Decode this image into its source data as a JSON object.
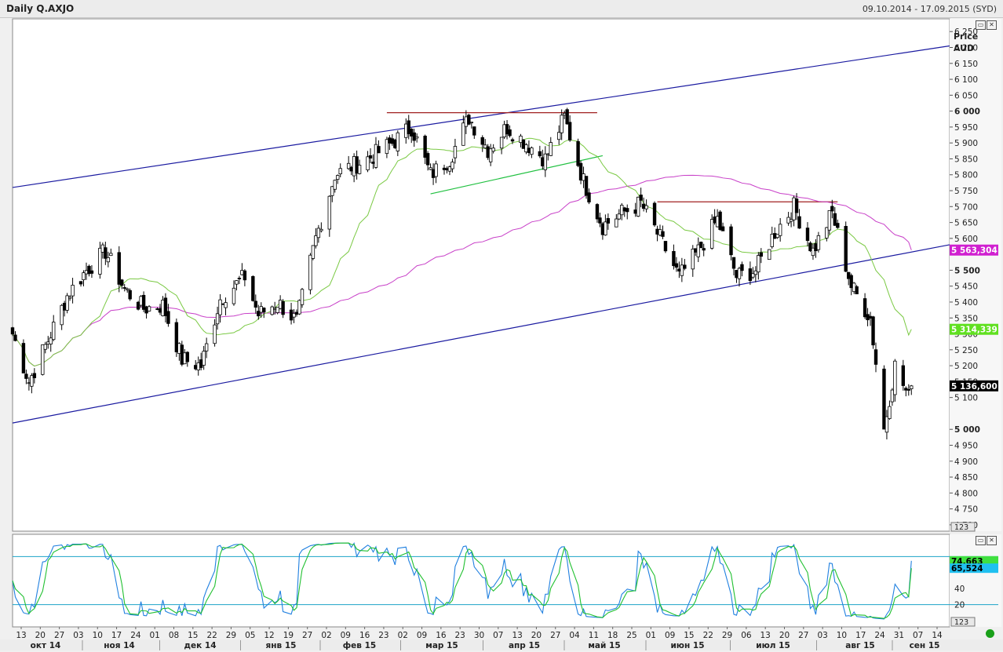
{
  "header": {
    "title": "Daily Q.AXJO",
    "date_range": "09.10.2014 - 17.09.2015 (SYD)"
  },
  "price_axis": {
    "title": "Price",
    "currency": "AUD",
    "ticks": [
      "6 250",
      "6 200",
      "6 150",
      "6 100",
      "6 050",
      "6 000",
      "5 950",
      "5 900",
      "5 850",
      "5 800",
      "5 750",
      "5 700",
      "5 650",
      "5 600",
      "5 500",
      "5 450",
      "5 400",
      "5 350",
      "5 300",
      "5 250",
      "5 200",
      "5 150",
      "5 100",
      "5 000",
      "4 950",
      "4 900",
      "4 850",
      "4 800",
      "4 750",
      "4 700"
    ],
    "scale_button": "123"
  },
  "osc_axis": {
    "ticks": [
      "40",
      "20"
    ],
    "scale_button": "123"
  },
  "labels": {
    "last_price": "5 136,600",
    "sma_long": "5 563,304",
    "sma_short": "5 314,339",
    "stoch_k": "74,663",
    "stoch_d": "65,524"
  },
  "colors": {
    "candle": "#000000",
    "sma_short": "#7ac943",
    "sma_long": "#c840c8",
    "channel": "#1a1aa0",
    "resistance": "#a02020",
    "support": "#20c040",
    "stoch_k": "#2080e0",
    "stoch_d": "#20c030",
    "osc_levels": "#1ba3c8",
    "last_price_bg": "#000000",
    "sma_long_bg": "#d020d0",
    "sma_short_bg": "#60e020",
    "stoch_k_bg": "#20c0f0",
    "stoch_d_bg": "#40e040"
  },
  "time_axis": {
    "days": [
      "13",
      "20",
      "27",
      "03",
      "10",
      "17",
      "24",
      "01",
      "08",
      "15",
      "22",
      "29",
      "05",
      "12",
      "19",
      "27",
      "02",
      "09",
      "16",
      "23",
      "02",
      "09",
      "16",
      "23",
      "30",
      "07",
      "13",
      "20",
      "27",
      "04",
      "11",
      "18",
      "25",
      "01",
      "09",
      "15",
      "22",
      "29",
      "06",
      "13",
      "20",
      "27",
      "03",
      "10",
      "17",
      "24",
      "31",
      "07",
      "14"
    ],
    "months": [
      "окт 14",
      "ноя 14",
      "дек 14",
      "янв 15",
      "фев 15",
      "мар 15",
      "апр 15",
      "май 15",
      "июн 15",
      "июл 15",
      "авг 15",
      "сен 15"
    ]
  },
  "chart_data": {
    "type": "candlestick",
    "symbol": "Q.AXJO",
    "period": "Daily",
    "y_unit": "AUD",
    "ylim": [
      4680,
      6290
    ],
    "series_points": {
      "anchors_date_close": [
        [
          "2014-10-09",
          5300
        ],
        [
          "2014-10-15",
          5150
        ],
        [
          "2014-10-22",
          5280
        ],
        [
          "2014-10-29",
          5420
        ],
        [
          "2014-11-05",
          5500
        ],
        [
          "2014-11-12",
          5560
        ],
        [
          "2014-11-19",
          5440
        ],
        [
          "2014-11-26",
          5380
        ],
        [
          "2014-12-03",
          5390
        ],
        [
          "2014-12-10",
          5220
        ],
        [
          "2014-12-17",
          5200
        ],
        [
          "2014-12-24",
          5410
        ],
        [
          "2015-01-02",
          5480
        ],
        [
          "2015-01-07",
          5360
        ],
        [
          "2015-01-14",
          5400
        ],
        [
          "2015-01-21",
          5340
        ],
        [
          "2015-01-28",
          5600
        ],
        [
          "2015-02-04",
          5800
        ],
        [
          "2015-02-11",
          5830
        ],
        [
          "2015-02-18",
          5860
        ],
        [
          "2015-02-25",
          5900
        ],
        [
          "2015-03-04",
          5950
        ],
        [
          "2015-03-11",
          5800
        ],
        [
          "2015-03-18",
          5850
        ],
        [
          "2015-03-25",
          5980
        ],
        [
          "2015-04-01",
          5880
        ],
        [
          "2015-04-08",
          5950
        ],
        [
          "2015-04-15",
          5900
        ],
        [
          "2015-04-22",
          5850
        ],
        [
          "2015-04-29",
          5980
        ],
        [
          "2015-05-06",
          5780
        ],
        [
          "2015-05-13",
          5640
        ],
        [
          "2015-05-20",
          5680
        ],
        [
          "2015-05-27",
          5710
        ],
        [
          "2015-06-03",
          5600
        ],
        [
          "2015-06-10",
          5480
        ],
        [
          "2015-06-17",
          5560
        ],
        [
          "2015-06-24",
          5660
        ],
        [
          "2015-07-01",
          5480
        ],
        [
          "2015-07-08",
          5500
        ],
        [
          "2015-07-15",
          5620
        ],
        [
          "2015-07-22",
          5700
        ],
        [
          "2015-07-29",
          5560
        ],
        [
          "2015-08-05",
          5680
        ],
        [
          "2015-08-12",
          5450
        ],
        [
          "2015-08-19",
          5350
        ],
        [
          "2015-08-24",
          5000
        ],
        [
          "2015-08-28",
          5200
        ],
        [
          "2015-09-02",
          5100
        ]
      ]
    },
    "overlays": [
      {
        "name": "",
        "kind": "moving_average",
        "color": "#7ac943",
        "last": 5314.339
      },
      {
        "name": "",
        "kind": "moving_average",
        "color": "#c840c8",
        "last": 5563.304
      }
    ],
    "trendlines": [
      {
        "kind": "channel_upper",
        "from": [
          "2014-10-09",
          5760
        ],
        "to": [
          "2015-09-17",
          6205
        ]
      },
      {
        "kind": "channel_lower",
        "from": [
          "2014-10-09",
          5020
        ],
        "to": [
          "2015-09-17",
          5580
        ]
      },
      {
        "kind": "resistance",
        "from": [
          "2015-02-23",
          5995
        ],
        "to": [
          "2015-05-11",
          5995
        ]
      },
      {
        "kind": "resistance",
        "from": [
          "2015-06-02",
          5715
        ],
        "to": [
          "2015-08-07",
          5715
        ]
      },
      {
        "kind": "support",
        "from": [
          "2015-03-11",
          5740
        ],
        "to": [
          "2015-05-13",
          5860
        ]
      }
    ],
    "oscillator": {
      "kind": "stochastic",
      "levels": [
        20,
        80
      ],
      "ticks": [
        20,
        40
      ],
      "k_last": 74.663,
      "d_last": 65.524
    },
    "last_price": 5136.6,
    "grid": false
  }
}
